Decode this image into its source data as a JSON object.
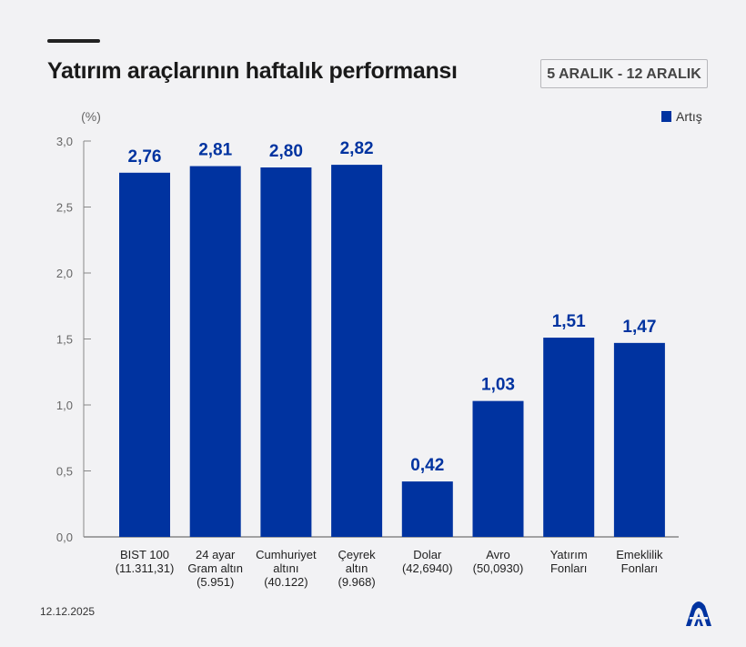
{
  "header": {
    "title": "Yatırım araçlarının haftalık performansı",
    "date_range": "5 ARALIK - 12 ARALIK"
  },
  "footer": {
    "date": "12.12.2025",
    "logo_text": "AA"
  },
  "colors": {
    "bar": "#0033a0",
    "label": "#0033a0",
    "background": "#f2f2f4"
  },
  "chart_data": {
    "type": "bar",
    "unit_label": "(%)",
    "categories": [
      [
        "BIST 100",
        "(11.311,31)"
      ],
      [
        "24 ayar",
        "Gram altın",
        "(5.951)"
      ],
      [
        "Cumhuriyet",
        "altını",
        "(40.122)"
      ],
      [
        "Çeyrek",
        "altın",
        "(9.968)"
      ],
      [
        "Dolar",
        "(42,6940)"
      ],
      [
        "Avro",
        "(50,0930)"
      ],
      [
        "Yatırım",
        "Fonları"
      ],
      [
        "Emeklilik",
        "Fonları"
      ]
    ],
    "series": [
      {
        "name": "Artış",
        "values": [
          2.76,
          2.81,
          2.8,
          2.82,
          0.42,
          1.03,
          1.51,
          1.47
        ],
        "value_labels": [
          "2,76",
          "2,81",
          "2,80",
          "2,82",
          "0,42",
          "1,03",
          "1,51",
          "1,47"
        ]
      }
    ],
    "yticks": [
      "0,0",
      "0,5",
      "1,0",
      "1,5",
      "2,0",
      "2,5",
      "3,0"
    ],
    "ytick_values": [
      0,
      0.5,
      1.0,
      1.5,
      2.0,
      2.5,
      3.0
    ],
    "ylim": [
      0,
      3.0
    ],
    "grid": false,
    "legend_position": "top-right"
  }
}
